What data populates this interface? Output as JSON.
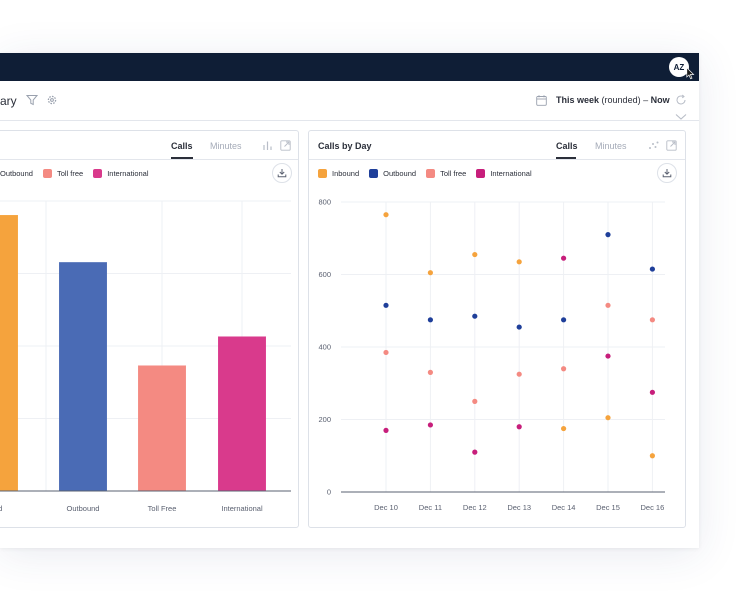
{
  "header": {
    "avatar_initials": "AZ",
    "title_fragment": "ary",
    "date_range": {
      "prefix": "This week",
      "qualifier": "(rounded)",
      "separator": "–",
      "end": "Now"
    }
  },
  "colors": {
    "topbar": "#0f1e36",
    "inbound": "#f5a33d",
    "outbound": "#4a6bb5",
    "toll_free": "#f48a82",
    "international": "#d93a8c",
    "outbound_dot": "#1f3f9a",
    "international_dot": "#c71e7b"
  },
  "left_card": {
    "tabs": [
      {
        "label": "Calls",
        "active": true
      },
      {
        "label": "Minutes",
        "active": false
      }
    ],
    "legend": [
      {
        "label": "Outbound",
        "color_key": "outbound"
      },
      {
        "label": "Toll free",
        "color_key": "toll_free"
      },
      {
        "label": "International",
        "color_key": "international"
      }
    ]
  },
  "right_card": {
    "title": "Calls by Day",
    "tabs": [
      {
        "label": "Calls",
        "active": true
      },
      {
        "label": "Minutes",
        "active": false
      }
    ],
    "legend": [
      {
        "label": "Inbound",
        "color_key": "inbound"
      },
      {
        "label": "Outbound",
        "color_key": "outbound_dot"
      },
      {
        "label": "Toll free",
        "color_key": "toll_free"
      },
      {
        "label": "International",
        "color_key": "international_dot"
      }
    ]
  },
  "chart_data": [
    {
      "type": "bar",
      "categories": [
        "ound",
        "Outbound",
        "Toll Free",
        "International"
      ],
      "values": [
        760,
        630,
        345,
        425
      ],
      "ylim": [
        0,
        800
      ],
      "grid": true,
      "title": "",
      "xlabel": "",
      "ylabel": ""
    },
    {
      "type": "scatter",
      "title": "Calls by Day",
      "categories": [
        "Dec 10",
        "Dec 11",
        "Dec 12",
        "Dec 13",
        "Dec 14",
        "Dec 15",
        "Dec 16"
      ],
      "yticks": [
        "0",
        "200",
        "400",
        "600",
        "800"
      ],
      "ylim": [
        0,
        800
      ],
      "grid": true,
      "legend_position": "top-left",
      "series": [
        {
          "name": "Inbound",
          "color_key": "inbound",
          "values": [
            765,
            605,
            655,
            635,
            175,
            205,
            100
          ]
        },
        {
          "name": "Outbound",
          "color_key": "outbound_dot",
          "values": [
            515,
            475,
            485,
            455,
            475,
            710,
            615
          ]
        },
        {
          "name": "Toll free",
          "color_key": "toll_free",
          "values": [
            385,
            330,
            250,
            325,
            340,
            515,
            475
          ]
        },
        {
          "name": "International",
          "color_key": "international_dot",
          "values": [
            170,
            185,
            110,
            180,
            645,
            375,
            275
          ]
        }
      ]
    }
  ]
}
